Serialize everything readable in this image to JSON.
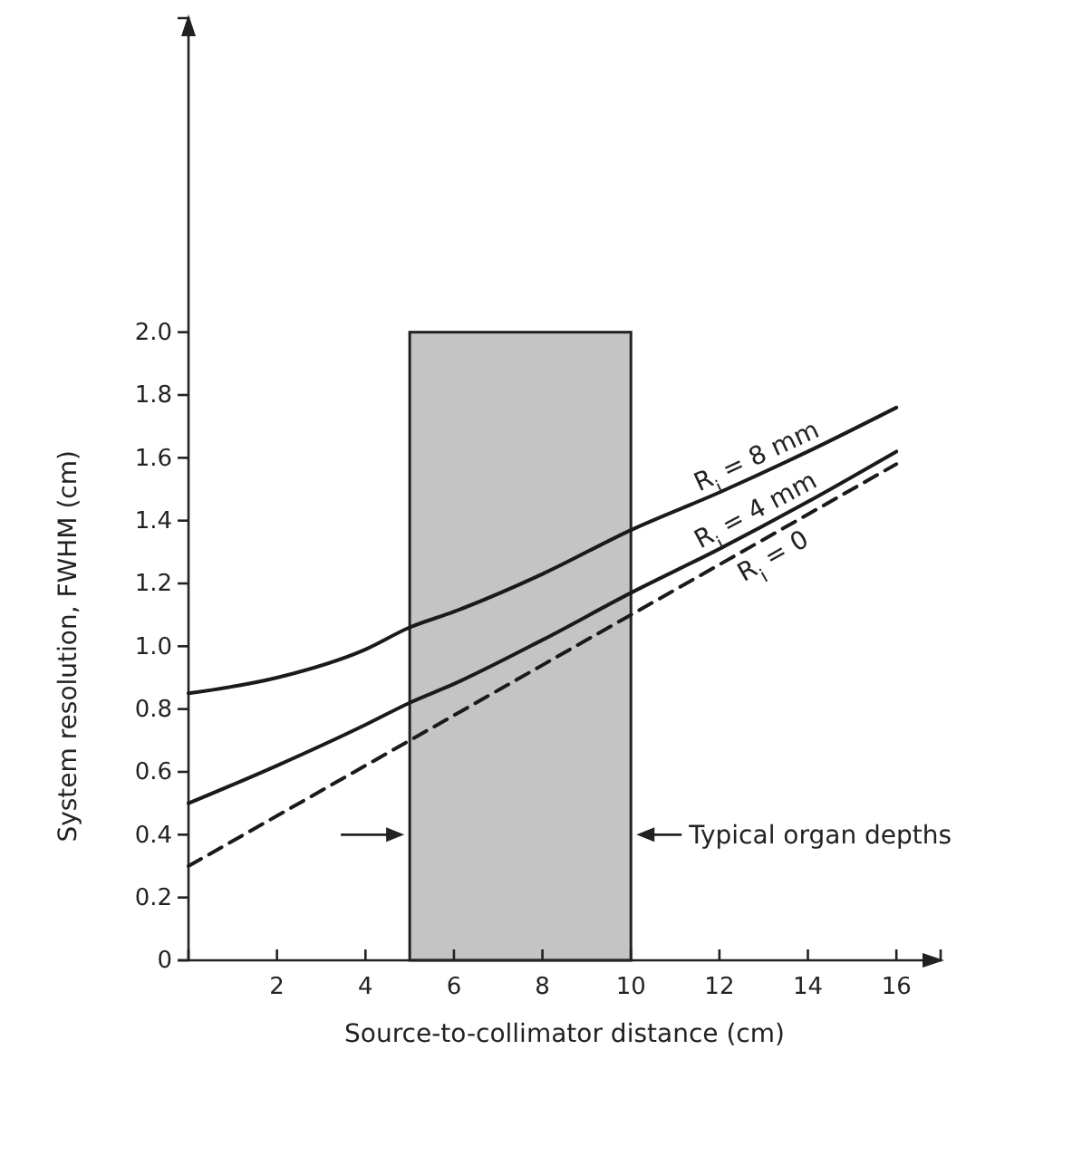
{
  "chart_data": {
    "type": "line",
    "xlabel": "Source-to-collimator distance (cm)",
    "ylabel": "System resolution, FWHM (cm)",
    "x": [
      0,
      2,
      4,
      5,
      6,
      8,
      10,
      12,
      14,
      16
    ],
    "series": [
      {
        "name": "R$_{i}$ = 8 mm",
        "color": "#1a1a1a",
        "line_style": "solid",
        "values": [
          0.85,
          0.9,
          0.99,
          1.06,
          1.11,
          1.23,
          1.37,
          1.49,
          1.62,
          1.76
        ]
      },
      {
        "name": "R$_{i}$ = 4 mm",
        "color": "#1a1a1a",
        "line_style": "solid",
        "values": [
          0.5,
          0.62,
          0.75,
          0.82,
          0.88,
          1.02,
          1.17,
          1.31,
          1.46,
          1.62
        ]
      },
      {
        "name": "R$_{i}$ = 0",
        "color": "#1a1a1a",
        "line_style": "dashed",
        "values": [
          0.3,
          0.46,
          0.62,
          0.7,
          0.78,
          0.94,
          1.1,
          1.26,
          1.42,
          1.58
        ]
      }
    ],
    "xlim": [
      0,
      17
    ],
    "ylim": [
      0,
      3
    ],
    "xticks": [
      2,
      4,
      6,
      8,
      10,
      12,
      14,
      16
    ],
    "yticks": [
      0,
      0.2,
      0.4,
      0.6,
      0.8,
      {
        "value": 1,
        "label": "1.0"
      },
      1.2,
      1.4,
      1.6,
      1.8,
      {
        "value": 2,
        "label": "2.0"
      }
    ],
    "bands": [
      {
        "axis": "x",
        "from": 5,
        "to": 10,
        "label": "Typical organ depths",
        "color": "#c4c4c4"
      }
    ],
    "marker": "none"
  }
}
